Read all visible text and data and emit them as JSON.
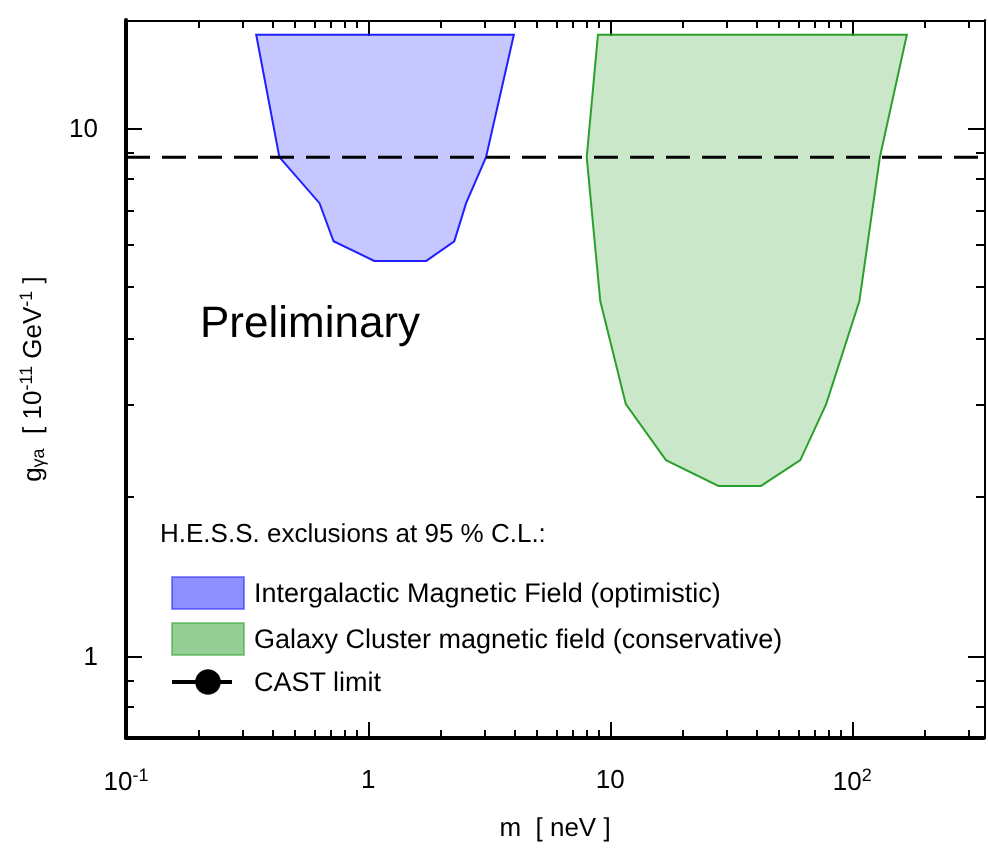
{
  "chart_data": {
    "type": "area",
    "xlabel": "m  [ neV ]",
    "ylabel": "g$_{γa}$  [ 10$^{-11}$ GeV$^{-1}$ ]",
    "log": "xy",
    "xlim": [
      0.1,
      350
    ],
    "ylim": [
      0.7,
      16
    ],
    "xticks": [
      {
        "value": 0.1,
        "label": "10$^{-1}$"
      },
      1,
      10,
      {
        "value": 100,
        "label": "10$^{2}$"
      }
    ],
    "yticks": [
      1,
      10
    ],
    "legend": "bottom left",
    "legend_title": "H.E.S.S. exclusions at 95 % C.L.:",
    "annotations": [
      "Preliminary"
    ],
    "series": [
      {
        "name": "Intergalactic Magnetic Field (optimistic)",
        "color": "#1f1fff",
        "x": [
          0.345,
          0.43,
          0.63,
          0.72,
          1.06,
          1.74,
          2.27,
          2.54,
          3.07,
          4.0
        ],
        "values": [
          15,
          8.8,
          7.2,
          6.1,
          5.6,
          5.6,
          6.1,
          7.2,
          8.8,
          15
        ]
      },
      {
        "name": "Galaxy Cluster magnetic field (conservative)",
        "color": "#2ca02c",
        "x": [
          8.9,
          8.0,
          9.1,
          11.6,
          17,
          28,
          42,
          61,
          78,
          107,
          130,
          168
        ],
        "values": [
          15,
          8.8,
          4.7,
          3.0,
          2.35,
          2.1,
          2.1,
          2.35,
          3.0,
          4.7,
          8.8,
          15
        ]
      }
    ],
    "ref_lines": [
      {
        "axis": "y",
        "value": 8.8,
        "label": "CAST limit",
        "color": "#000000",
        "line_style": "dashed"
      }
    ]
  }
}
